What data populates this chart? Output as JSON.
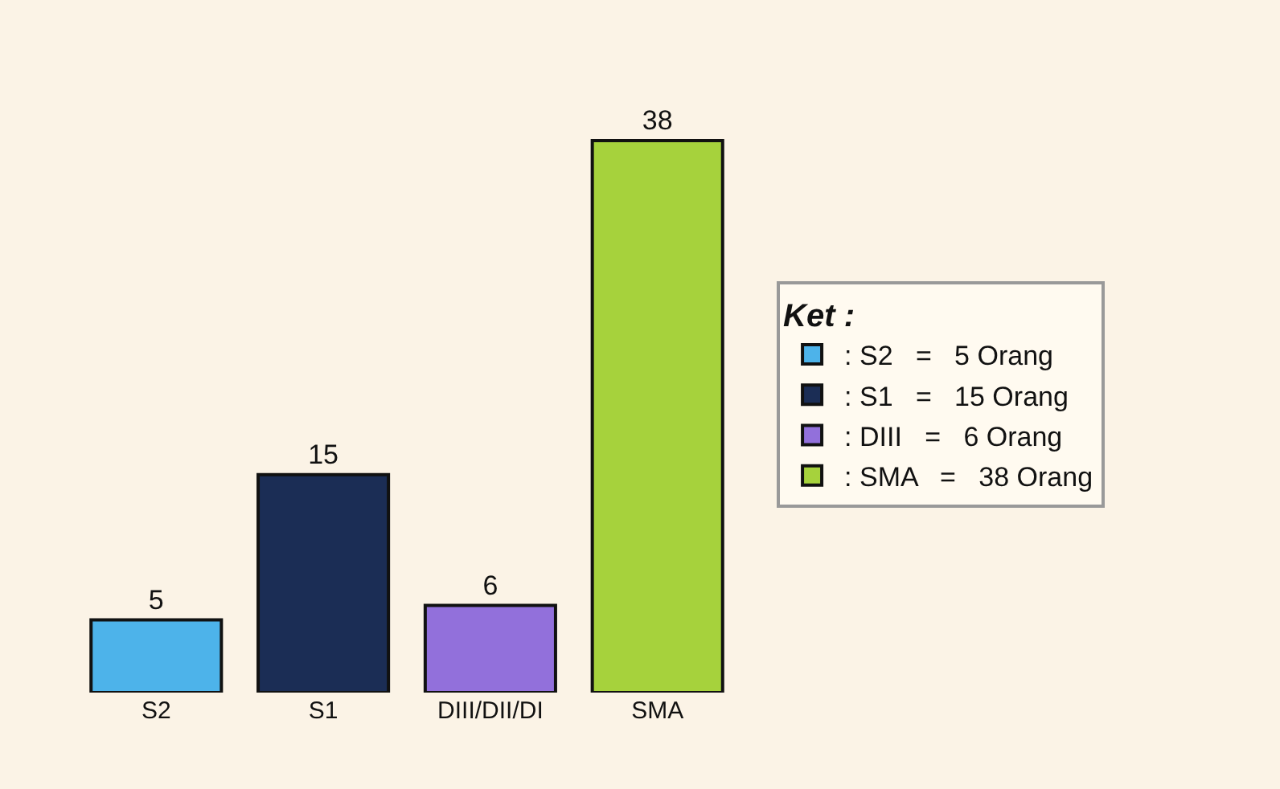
{
  "chart_data": {
    "type": "bar",
    "categories": [
      "S2",
      "S1",
      "DIII/DII/DI",
      "SMA"
    ],
    "series": [
      {
        "name": ": S2   =   5 Orang",
        "color": "#4db3ea",
        "values": [
          5,
          null,
          null,
          null
        ]
      },
      {
        "name": ": S1   =   15 Orang",
        "color": "#1b2d55",
        "values": [
          null,
          15,
          null,
          null
        ]
      },
      {
        "name": ": DIII   =   6 Orang",
        "color": "#9270db",
        "values": [
          null,
          null,
          6,
          null
        ]
      },
      {
        "name": ": SMA   =   38 Orang",
        "color": "#a6d23c",
        "values": [
          null,
          null,
          null,
          38
        ]
      }
    ],
    "legend_title": "Ket :",
    "legend": "right",
    "data_labels": true,
    "grid": false
  }
}
